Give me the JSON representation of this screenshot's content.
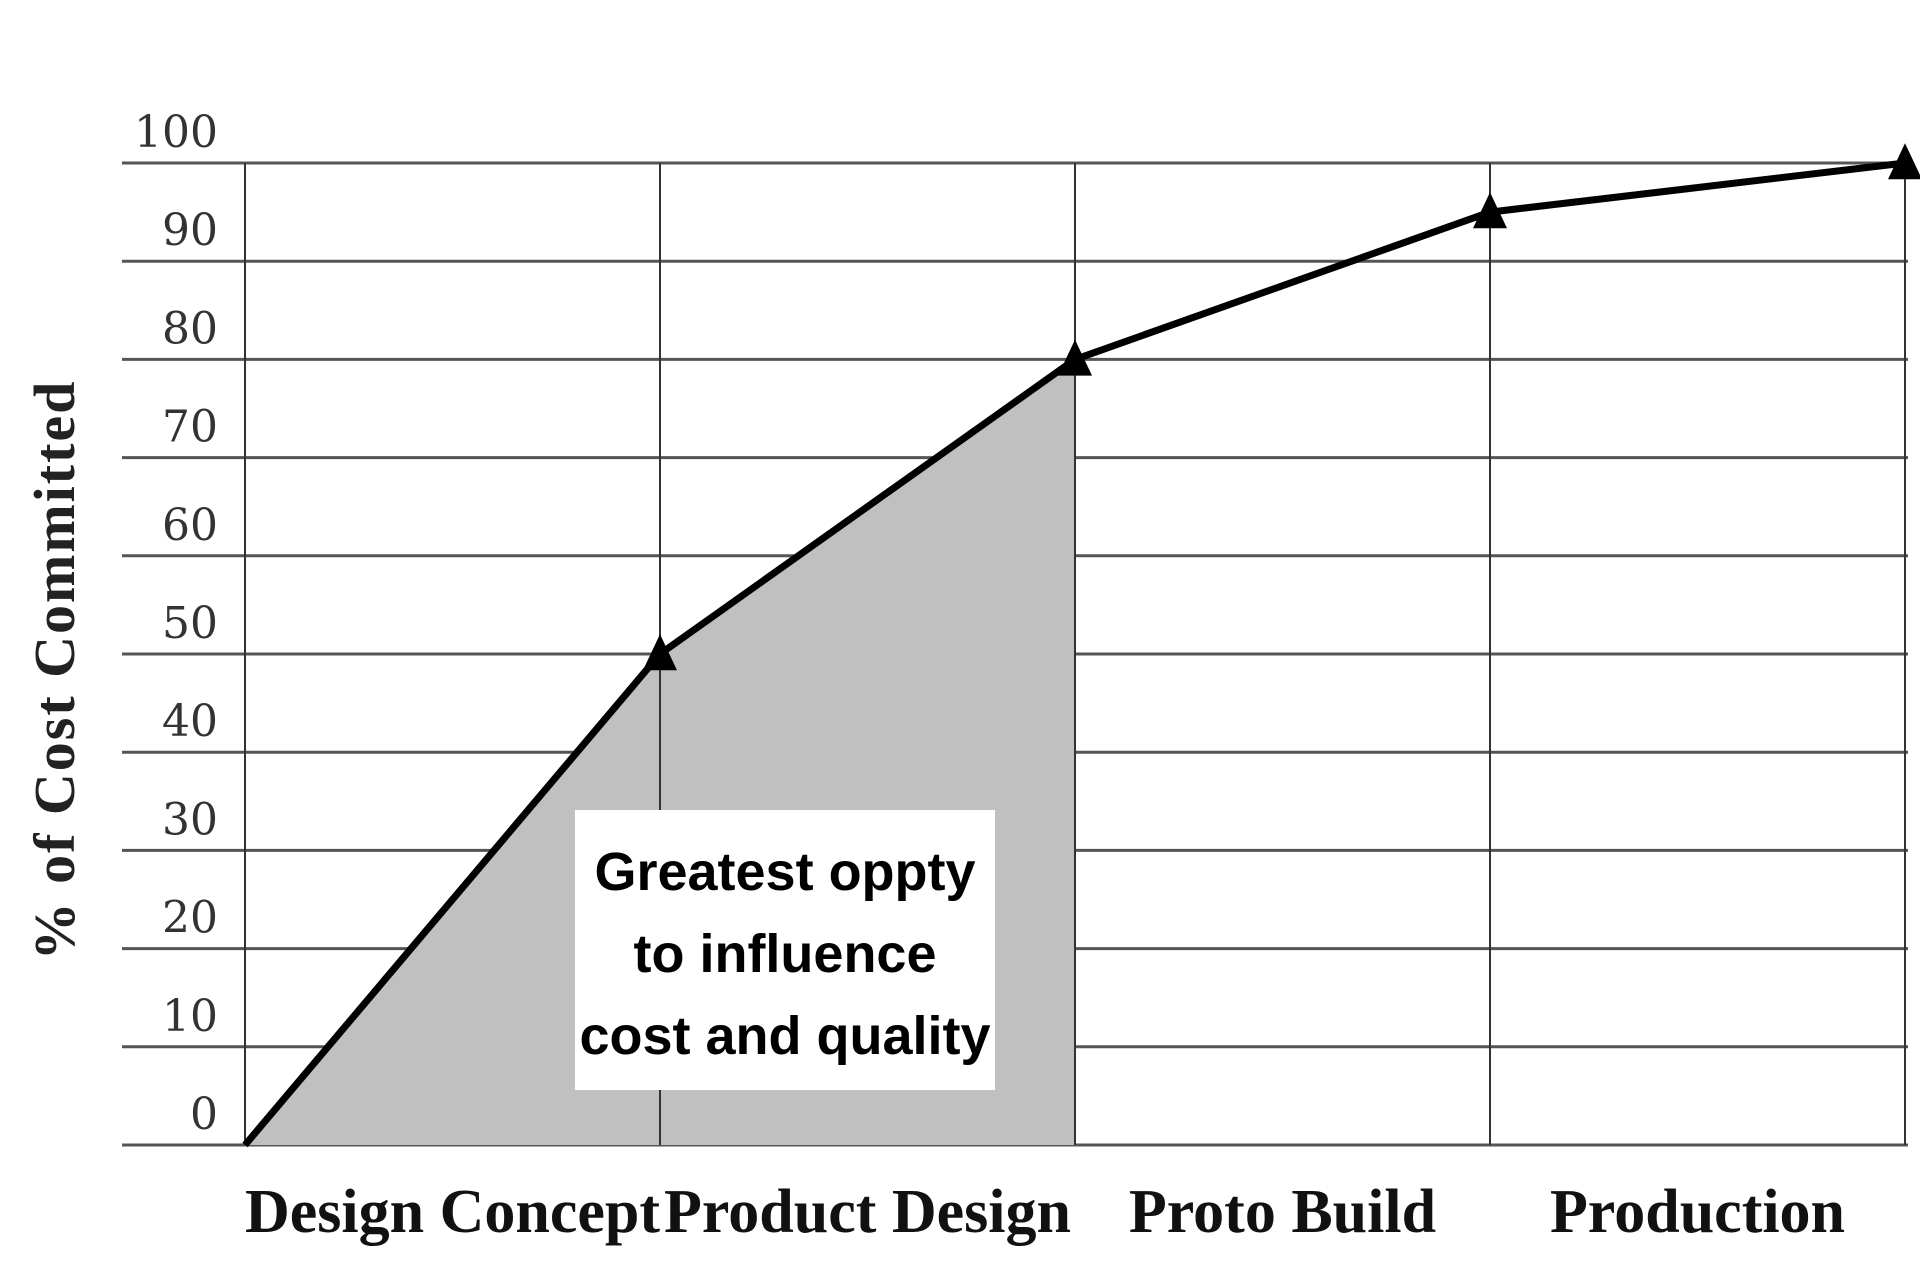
{
  "chart_data": {
    "type": "line",
    "ylabel": "% of Cost Committed",
    "xlabel": "",
    "ylim": [
      0,
      100
    ],
    "yticks": [
      0,
      10,
      20,
      30,
      40,
      50,
      60,
      70,
      80,
      90,
      100
    ],
    "categories": [
      "Design Concept",
      "Product Design",
      "Proto Build",
      "Production"
    ],
    "x": [
      0,
      1,
      2,
      3,
      4
    ],
    "series": [
      {
        "values": [
          0,
          50,
          80,
          95,
          100
        ],
        "marker": "triangle",
        "color": "#000000"
      }
    ],
    "shaded_region": {
      "x_from": 0,
      "x_to": 2,
      "color": "#c0c0c0"
    },
    "annotation": {
      "lines": [
        "Greatest oppty",
        "to influence",
        "cost and quality"
      ]
    },
    "grid": true,
    "legend": "none"
  }
}
